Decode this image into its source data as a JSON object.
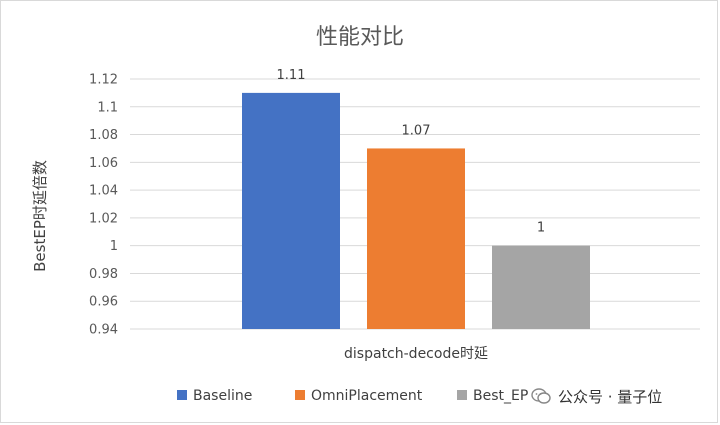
{
  "chart_data": {
    "type": "bar",
    "title": "性能对比",
    "xlabel": "dispatch-decode时延",
    "ylabel": "BestEP时延倍数",
    "categories": [
      "dispatch-decode时延"
    ],
    "series": [
      {
        "name": "Baseline",
        "values": [
          1.11
        ],
        "color": "#4472c4"
      },
      {
        "name": "OmniPlacement",
        "values": [
          1.07
        ],
        "color": "#ed7d31"
      },
      {
        "name": "Best_EP",
        "values": [
          1
        ],
        "color": "#a5a5a5"
      }
    ],
    "data_labels": [
      "1.11",
      "1.07",
      "1"
    ],
    "ylim": [
      0.94,
      1.12
    ],
    "yticks": [
      "0.94",
      "0.96",
      "0.98",
      "1",
      "1.02",
      "1.04",
      "1.06",
      "1.08",
      "1.1",
      "1.12"
    ],
    "ytick_values": [
      0.94,
      0.96,
      0.98,
      1.0,
      1.02,
      1.04,
      1.06,
      1.08,
      1.1,
      1.12
    ],
    "grid": true,
    "legend_position": "bottom"
  },
  "watermark": {
    "text": "公众号 · 量子位",
    "icon": "wechat-icon"
  }
}
